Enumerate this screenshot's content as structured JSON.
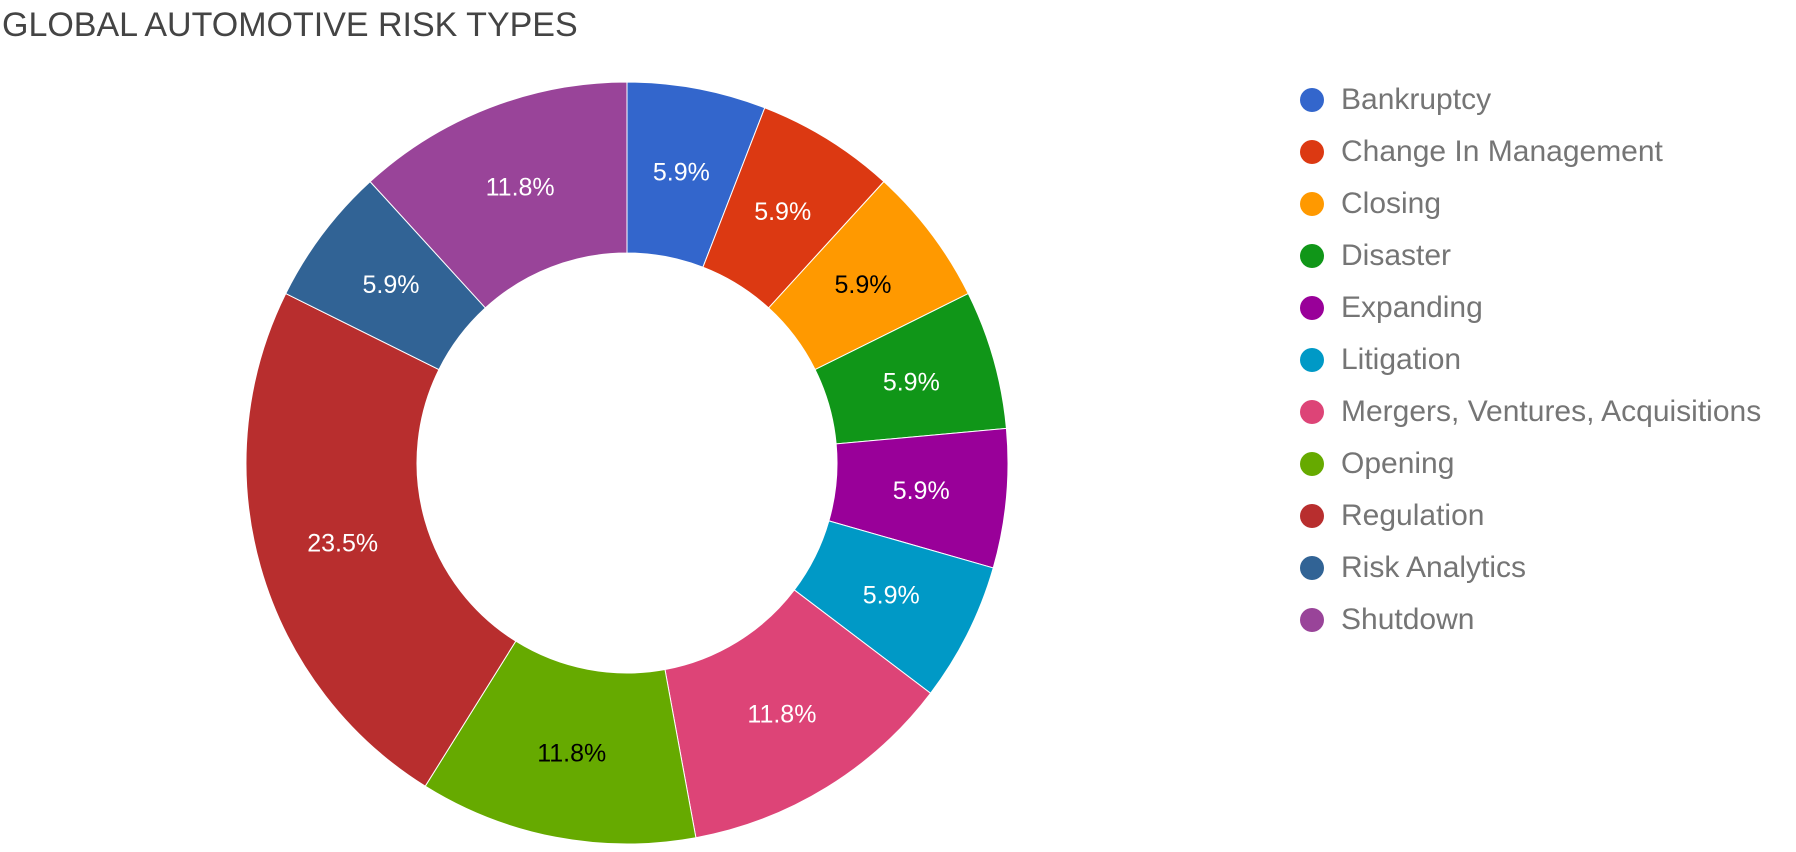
{
  "chart_data": {
    "type": "pie",
    "donut": true,
    "title": "GLOBAL AUTOMOTIVE RISK TYPES",
    "legend_position": "right",
    "slices": [
      {
        "label": "Bankruptcy",
        "percent": 5.9,
        "display": "5.9%",
        "color": "#3366cc",
        "label_color": "#ffffff"
      },
      {
        "label": "Change In Management",
        "percent": 5.9,
        "display": "5.9%",
        "color": "#dc3912",
        "label_color": "#ffffff"
      },
      {
        "label": "Closing",
        "percent": 5.9,
        "display": "5.9%",
        "color": "#ff9900",
        "label_color": "#000000"
      },
      {
        "label": "Disaster",
        "percent": 5.9,
        "display": "5.9%",
        "color": "#109618",
        "label_color": "#ffffff"
      },
      {
        "label": "Expanding",
        "percent": 5.9,
        "display": "5.9%",
        "color": "#990099",
        "label_color": "#ffffff"
      },
      {
        "label": "Litigation",
        "percent": 5.9,
        "display": "5.9%",
        "color": "#0099c6",
        "label_color": "#ffffff"
      },
      {
        "label": "Mergers, Ventures, Acquisitions",
        "percent": 11.8,
        "display": "11.8%",
        "color": "#dd4477",
        "label_color": "#ffffff"
      },
      {
        "label": "Opening",
        "percent": 11.8,
        "display": "11.8%",
        "color": "#66aa00",
        "label_color": "#000000"
      },
      {
        "label": "Regulation",
        "percent": 23.5,
        "display": "23.5%",
        "color": "#b82e2e",
        "label_color": "#ffffff"
      },
      {
        "label": "Risk Analytics",
        "percent": 5.9,
        "display": "5.9%",
        "color": "#316395",
        "label_color": "#ffffff"
      },
      {
        "label": "Shutdown",
        "percent": 11.8,
        "display": "11.8%",
        "color": "#994499",
        "label_color": "#ffffff"
      }
    ]
  }
}
